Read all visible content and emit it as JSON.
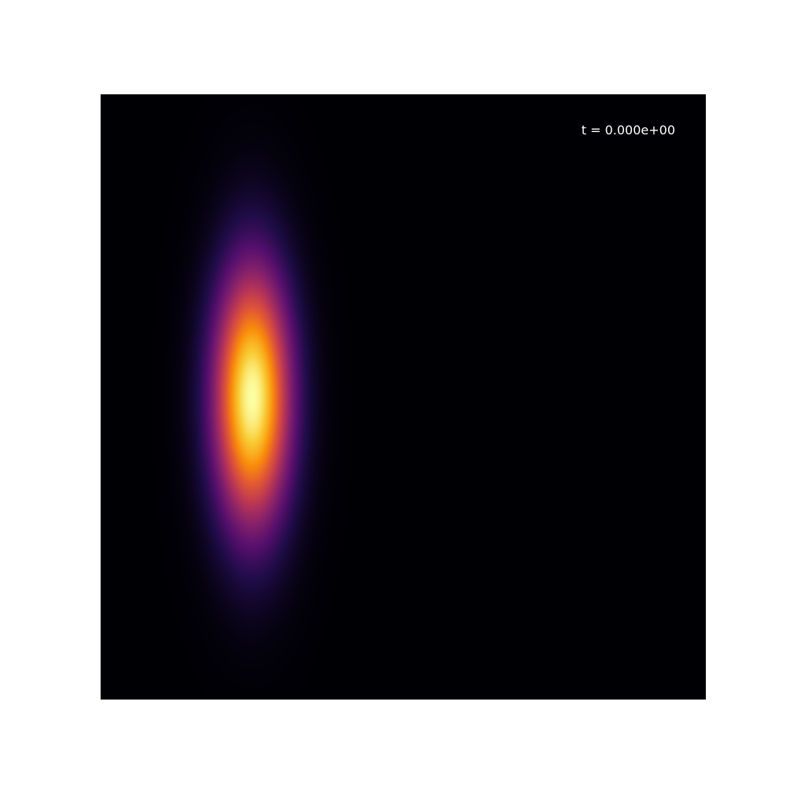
{
  "chart_data": {
    "type": "heatmap",
    "title": "",
    "xlabel": "",
    "ylabel": "",
    "colormap": "inferno",
    "annotation": "t = 0.000e+00",
    "background_color": "#000004",
    "peak_color": "#fcffa4",
    "field": {
      "shape": "gaussian",
      "center": [
        0.25,
        0.5
      ],
      "sigma": [
        0.045,
        0.15
      ],
      "peak_value": 1.0
    }
  }
}
